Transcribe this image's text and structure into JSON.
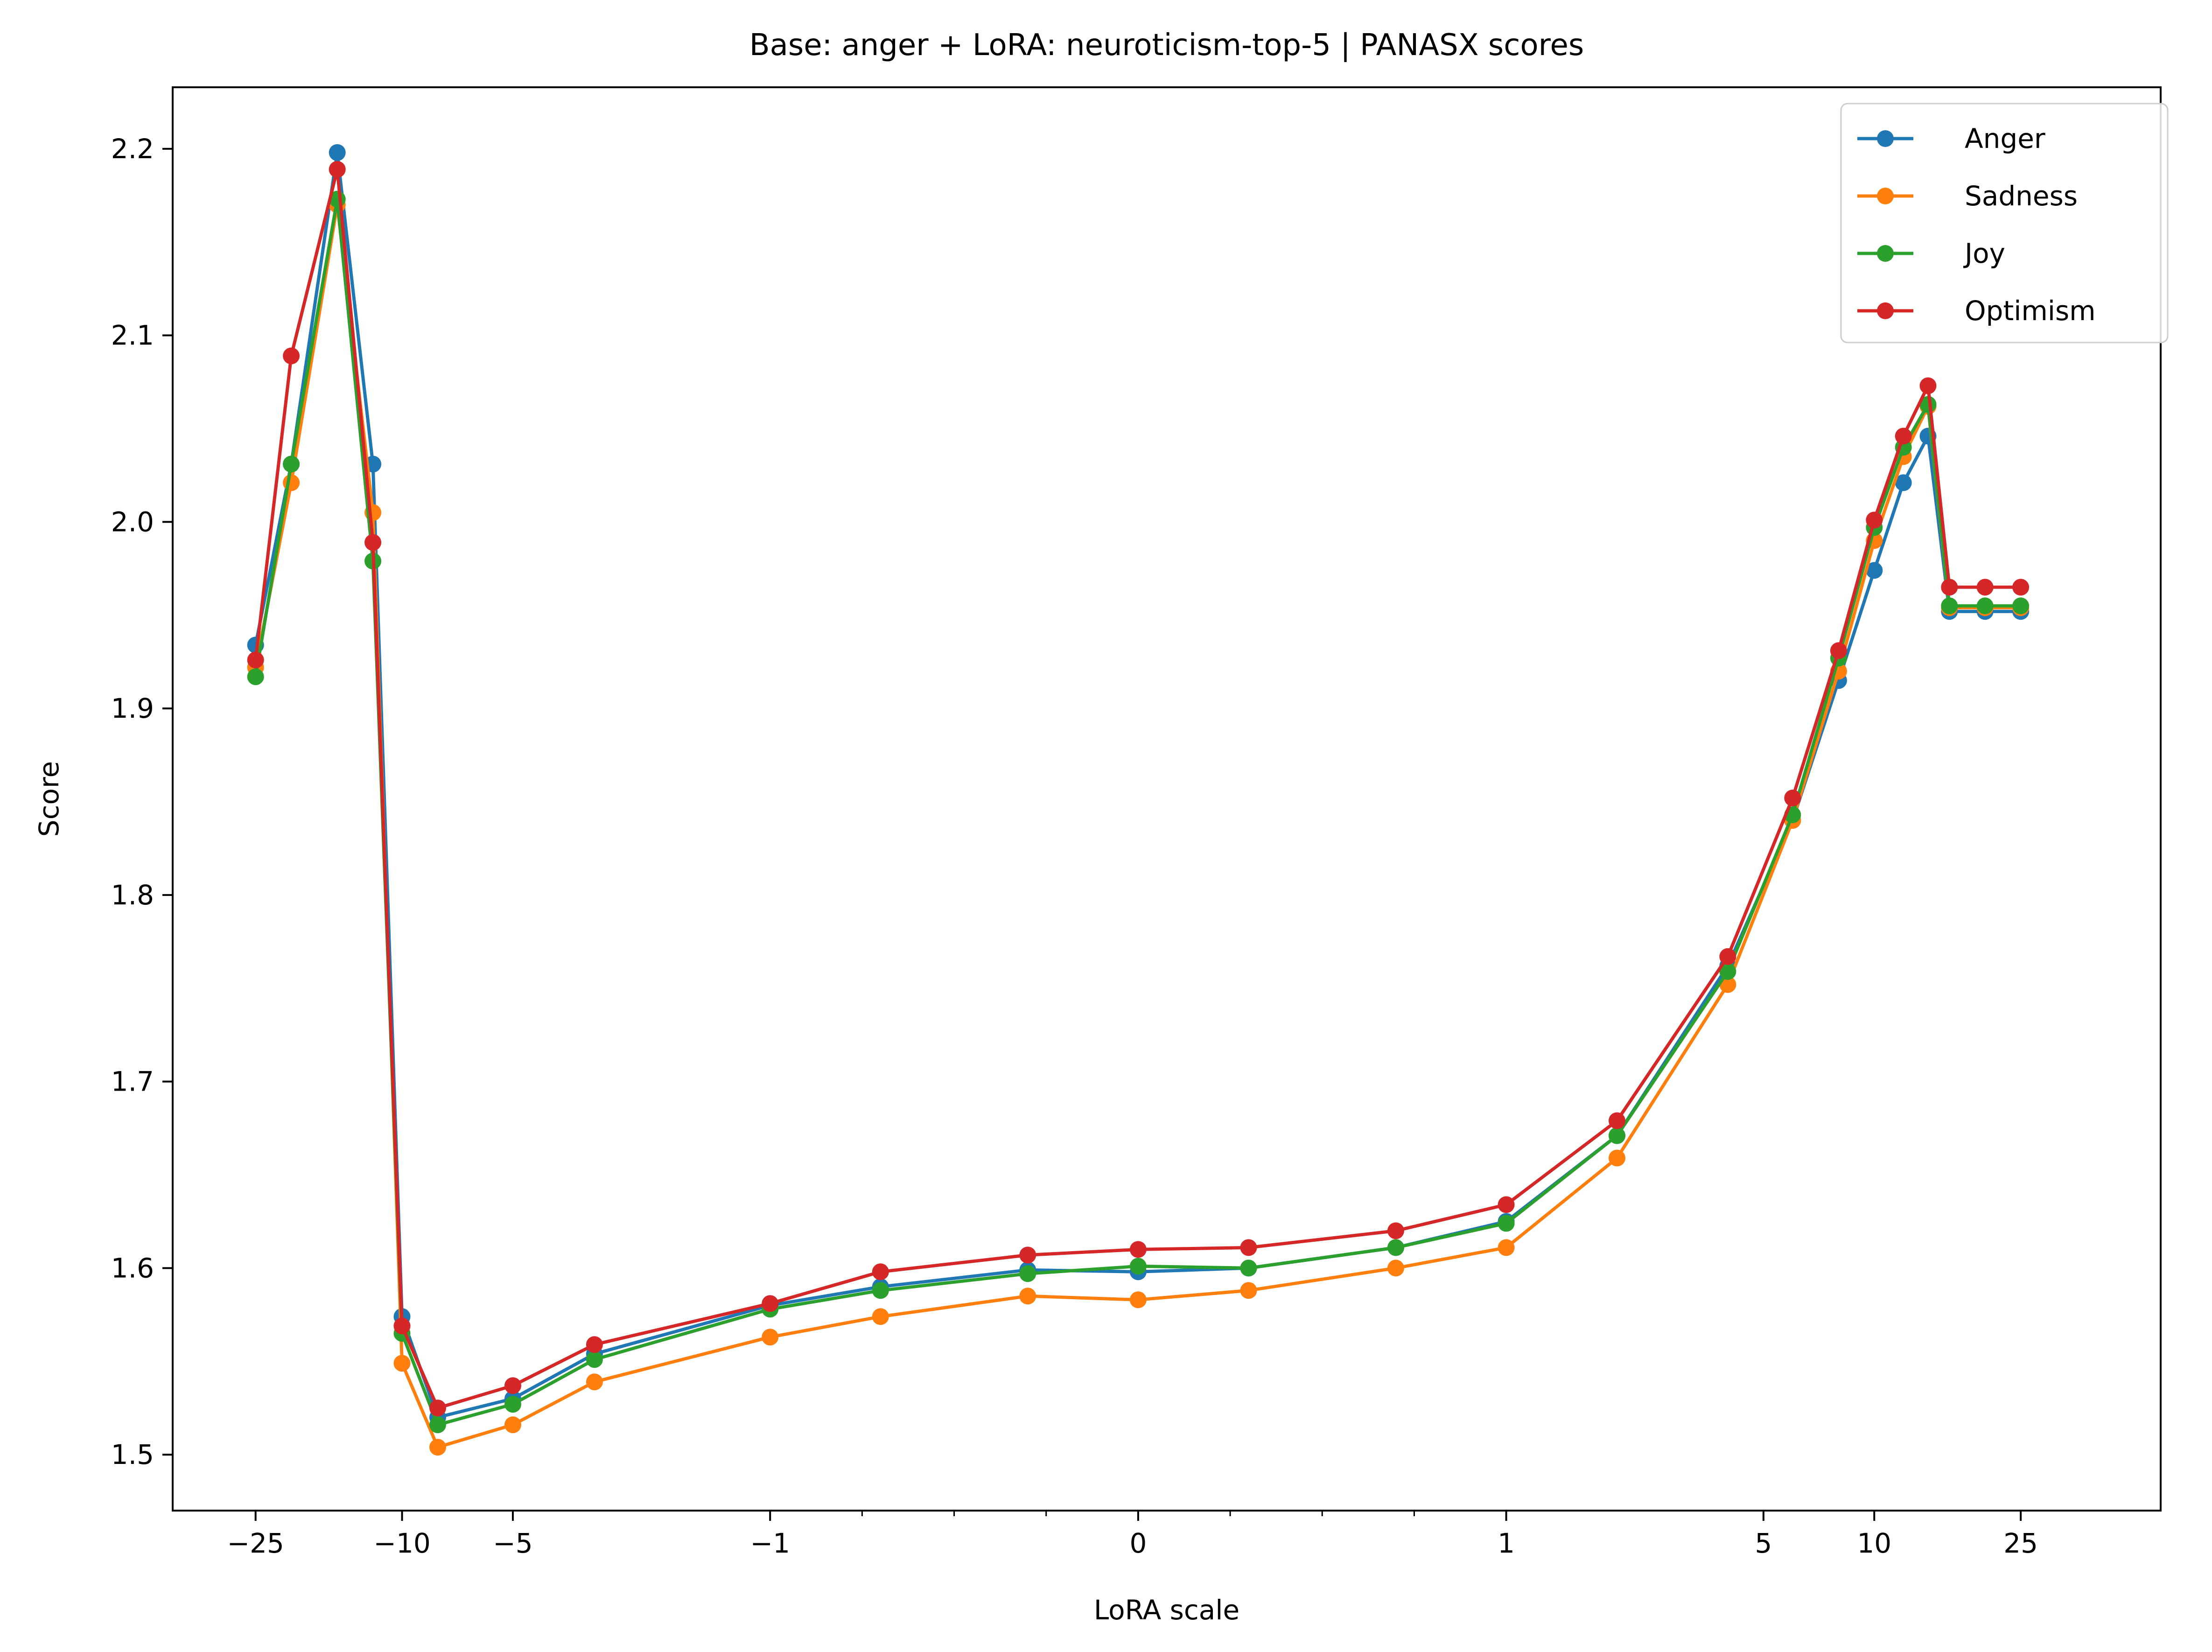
{
  "chart_data": {
    "type": "line",
    "title": "Base: anger + LoRA: neuroticism-top-5 | PANASX scores",
    "xlabel": "LoRA scale",
    "ylabel": "Score",
    "x_scale": "symlog",
    "x_linthresh": 1,
    "xlim": [
      -42,
      60
    ],
    "ylim": [
      1.47,
      2.233
    ],
    "grid": false,
    "legend_position": "top-right",
    "x_ticks": [
      -25,
      -10,
      -5,
      -1,
      0,
      1,
      5,
      10,
      25
    ],
    "x_tick_labels": [
      "−25",
      "−10",
      "−5",
      "−1",
      "0",
      "1",
      "5",
      "10",
      "25"
    ],
    "x_minor_ticks": [
      -0.75,
      -0.5,
      -0.25,
      0.25,
      0.5,
      0.75
    ],
    "y_ticks": [
      1.5,
      1.6,
      1.7,
      1.8,
      1.9,
      2.0,
      2.1,
      2.2
    ],
    "y_tick_labels": [
      "1.5",
      "1.6",
      "1.7",
      "1.8",
      "1.9",
      "2.0",
      "2.1",
      "2.2"
    ],
    "x": [
      -25,
      -20,
      -15,
      -12,
      -10,
      -8,
      -5,
      -3,
      -1,
      -0.7,
      -0.3,
      0,
      0.3,
      0.7,
      1,
      2,
      4,
      6,
      8,
      10,
      12,
      14,
      16,
      20,
      25
    ],
    "series": [
      {
        "name": "Anger",
        "color": "#1f77b4",
        "values": [
          1.934,
          2.031,
          2.198,
          2.031,
          1.574,
          1.52,
          1.53,
          1.554,
          1.58,
          1.59,
          1.599,
          1.598,
          1.6,
          1.611,
          1.625,
          1.671,
          1.762,
          1.84,
          1.915,
          1.974,
          2.021,
          2.046,
          1.952,
          1.952,
          1.952
        ]
      },
      {
        "name": "Sadness",
        "color": "#ff7f0e",
        "values": [
          1.922,
          2.021,
          2.17,
          2.005,
          1.549,
          1.504,
          1.516,
          1.539,
          1.563,
          1.574,
          1.585,
          1.583,
          1.588,
          1.6,
          1.611,
          1.659,
          1.752,
          1.84,
          1.92,
          1.99,
          2.035,
          2.062,
          1.954,
          1.954,
          1.954
        ]
      },
      {
        "name": "Joy",
        "color": "#2ca02c",
        "values": [
          1.917,
          2.031,
          2.173,
          1.979,
          1.565,
          1.516,
          1.527,
          1.551,
          1.578,
          1.588,
          1.597,
          1.601,
          1.6,
          1.611,
          1.624,
          1.671,
          1.759,
          1.843,
          1.927,
          1.997,
          2.04,
          2.063,
          1.955,
          1.955,
          1.955
        ]
      },
      {
        "name": "Optimism",
        "color": "#d62728",
        "values": [
          1.926,
          2.089,
          2.189,
          1.989,
          1.569,
          1.525,
          1.537,
          1.559,
          1.581,
          1.598,
          1.607,
          1.61,
          1.611,
          1.62,
          1.634,
          1.679,
          1.767,
          1.852,
          1.931,
          2.001,
          2.046,
          2.073,
          1.965,
          1.965,
          1.965
        ]
      }
    ]
  }
}
